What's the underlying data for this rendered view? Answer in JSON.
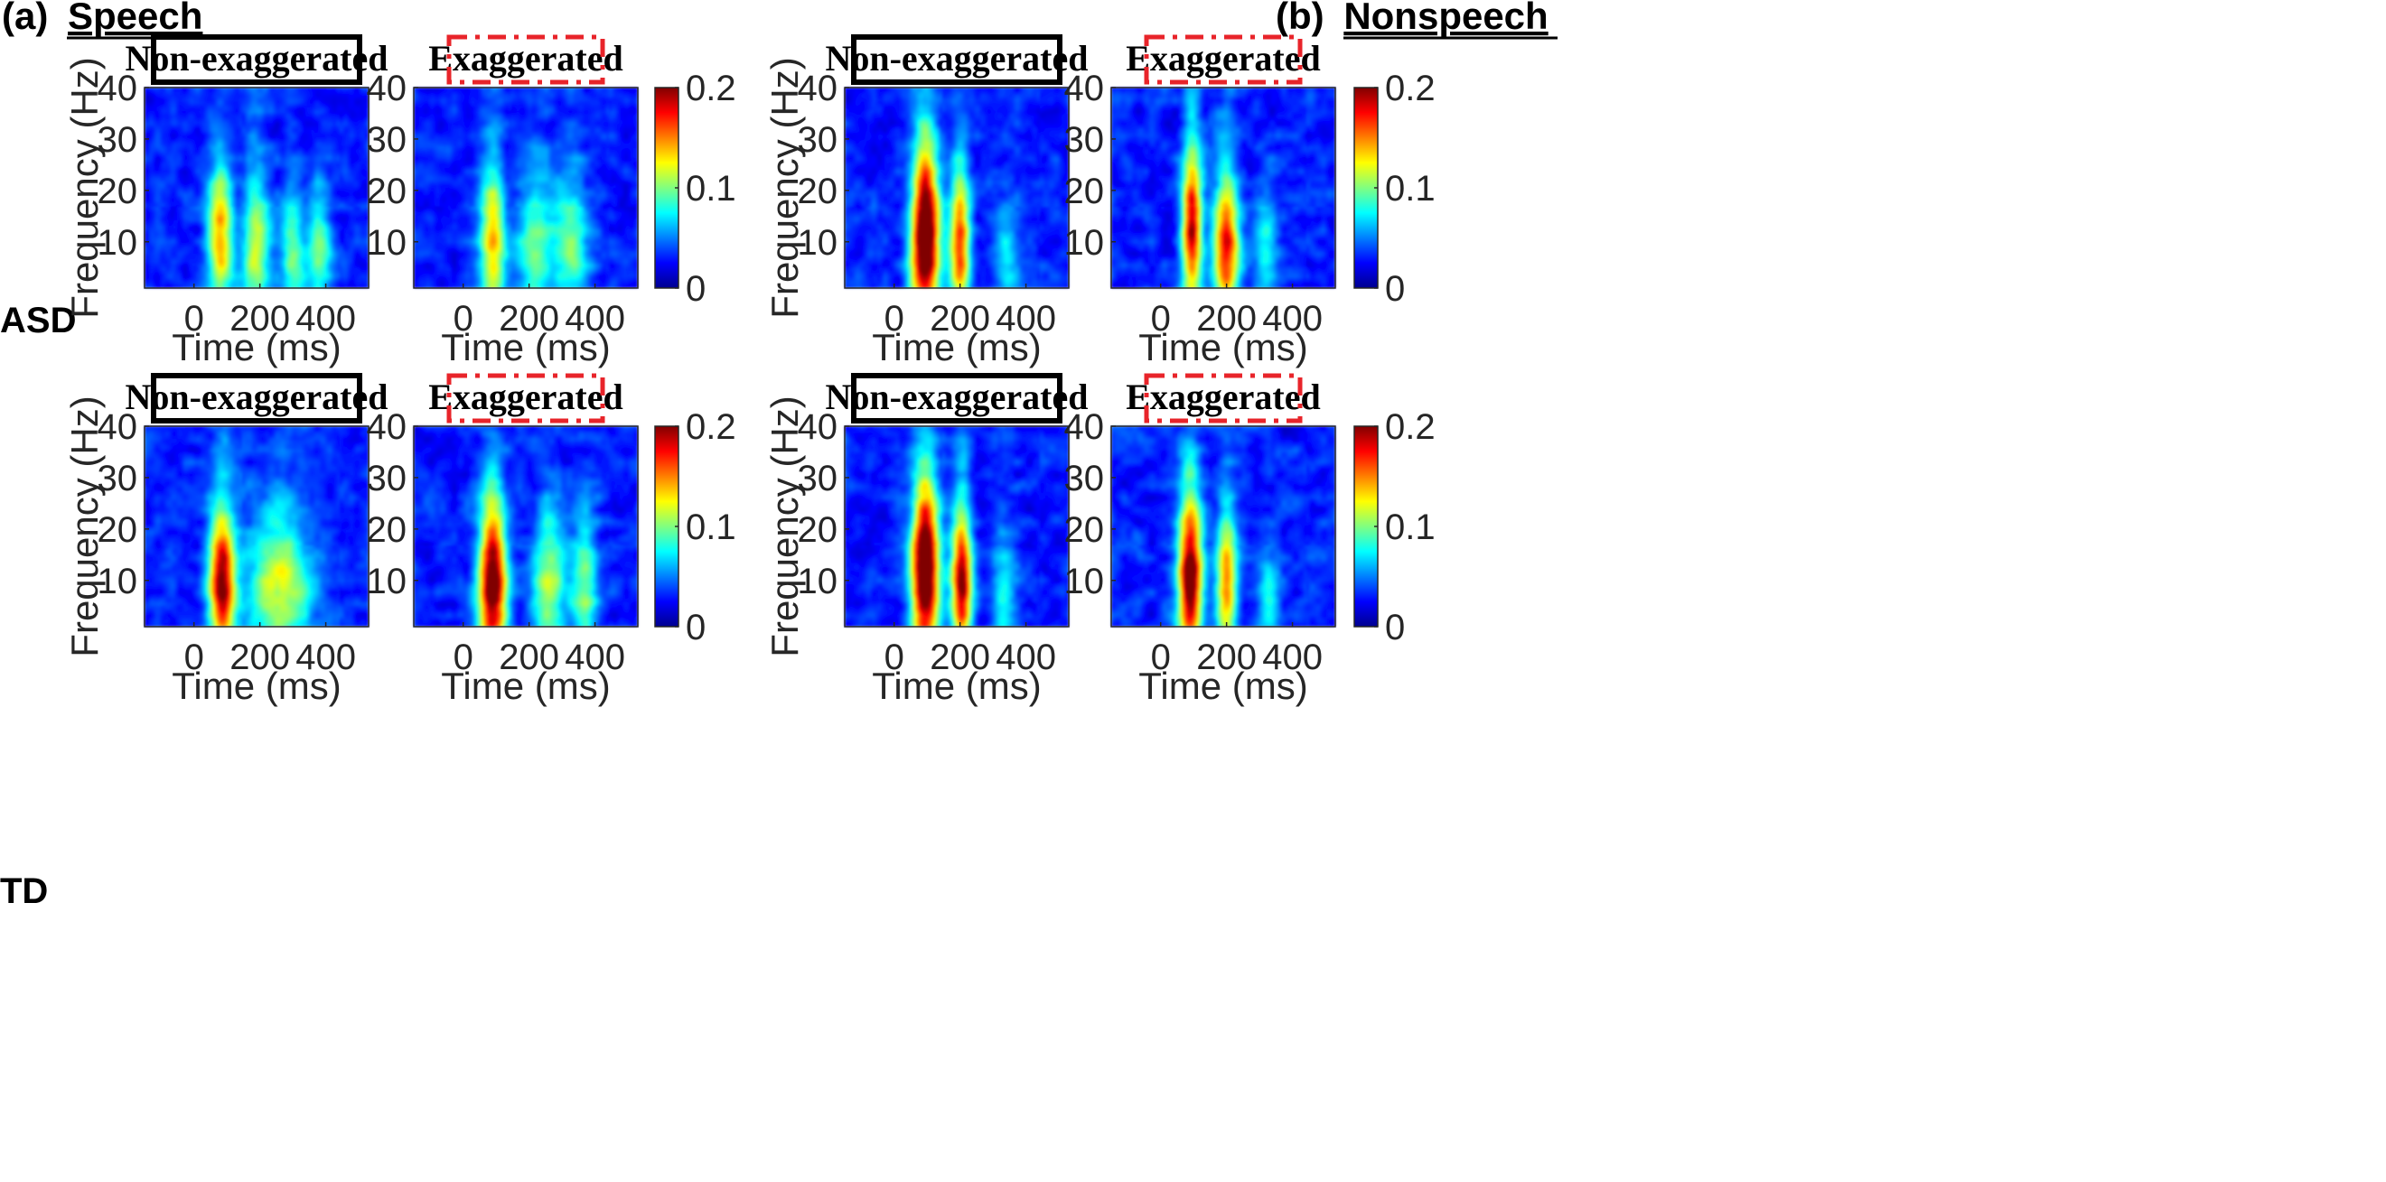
{
  "panels": [
    {
      "letter": "(a)",
      "name": "Speech"
    },
    {
      "letter": "(b)",
      "name": "Nonspeech"
    }
  ],
  "rows": [
    "ASD",
    "TD"
  ],
  "conditions": [
    "Non-exaggerated",
    "Exaggerated"
  ],
  "colors": {
    "non_exaggerated_box": "#000000",
    "exaggerated_box": "#e8242a",
    "colormap": "jet"
  },
  "chart_data": {
    "type": "heatmap",
    "subtype": "time-frequency spectrogram grid (2 panels x 2 groups x 2 conditions)",
    "xlabel": "Time (ms)",
    "ylabel": "Frequency (Hz)",
    "xlim": [
      -150,
      530
    ],
    "ylim": [
      1,
      40
    ],
    "xticks": [
      0,
      200,
      400
    ],
    "yticks": [
      10,
      20,
      30,
      40
    ],
    "colorbar": {
      "min": 0,
      "max": 0.2,
      "ticks": [
        "0",
        "0.1",
        "0.2"
      ]
    },
    "plots": [
      {
        "panel": "Speech",
        "group": "ASD",
        "condition": "Non-exaggerated",
        "blobs": [
          {
            "t": 80,
            "f": 10,
            "width_ms": 28,
            "height_hz": 9,
            "peak": 0.11
          },
          {
            "t": 190,
            "f": 8,
            "width_ms": 30,
            "height_hz": 9,
            "peak": 0.08
          },
          {
            "t": 300,
            "f": 7,
            "width_ms": 25,
            "height_hz": 8,
            "peak": 0.065
          },
          {
            "t": 380,
            "f": 7,
            "width_ms": 28,
            "height_hz": 8,
            "peak": 0.06
          }
        ]
      },
      {
        "panel": "Speech",
        "group": "ASD",
        "condition": "Exaggerated",
        "blobs": [
          {
            "t": 90,
            "f": 9,
            "width_ms": 28,
            "height_hz": 10,
            "peak": 0.1
          },
          {
            "t": 220,
            "f": 8,
            "width_ms": 40,
            "height_hz": 9,
            "peak": 0.065
          },
          {
            "t": 330,
            "f": 8,
            "width_ms": 40,
            "height_hz": 9,
            "peak": 0.06
          }
        ]
      },
      {
        "panel": "Speech",
        "group": "TD",
        "condition": "Non-exaggerated",
        "blobs": [
          {
            "t": 85,
            "f": 9,
            "width_ms": 28,
            "height_hz": 9,
            "peak": 0.16
          },
          {
            "t": 260,
            "f": 8,
            "width_ms": 70,
            "height_hz": 9,
            "peak": 0.085
          }
        ]
      },
      {
        "panel": "Speech",
        "group": "TD",
        "condition": "Exaggerated",
        "blobs": [
          {
            "t": 90,
            "f": 9,
            "width_ms": 30,
            "height_hz": 10,
            "peak": 0.18
          },
          {
            "t": 260,
            "f": 8,
            "width_ms": 35,
            "height_hz": 9,
            "peak": 0.075
          },
          {
            "t": 370,
            "f": 8,
            "width_ms": 30,
            "height_hz": 8,
            "peak": 0.065
          }
        ]
      },
      {
        "panel": "Nonspeech",
        "group": "ASD",
        "condition": "Non-exaggerated",
        "blobs": [
          {
            "t": 95,
            "f": 10,
            "width_ms": 30,
            "height_hz": 11,
            "peak": 0.2
          },
          {
            "t": 200,
            "f": 9,
            "width_ms": 22,
            "height_hz": 9,
            "peak": 0.13
          },
          {
            "t": 340,
            "f": 6,
            "width_ms": 25,
            "height_hz": 6,
            "peak": 0.04
          }
        ]
      },
      {
        "panel": "Nonspeech",
        "group": "ASD",
        "condition": "Exaggerated",
        "blobs": [
          {
            "t": 95,
            "f": 12,
            "width_ms": 22,
            "height_hz": 10,
            "peak": 0.15
          },
          {
            "t": 200,
            "f": 8,
            "width_ms": 28,
            "height_hz": 9,
            "peak": 0.14
          },
          {
            "t": 320,
            "f": 7,
            "width_ms": 25,
            "height_hz": 7,
            "peak": 0.05
          }
        ]
      },
      {
        "panel": "Nonspeech",
        "group": "TD",
        "condition": "Non-exaggerated",
        "blobs": [
          {
            "t": 95,
            "f": 11,
            "width_ms": 30,
            "height_hz": 11,
            "peak": 0.2
          },
          {
            "t": 205,
            "f": 9,
            "width_ms": 22,
            "height_hz": 9,
            "peak": 0.16
          },
          {
            "t": 330,
            "f": 7,
            "width_ms": 25,
            "height_hz": 7,
            "peak": 0.05
          }
        ]
      },
      {
        "panel": "Nonspeech",
        "group": "TD",
        "condition": "Exaggerated",
        "blobs": [
          {
            "t": 90,
            "f": 10,
            "width_ms": 26,
            "height_hz": 10,
            "peak": 0.18
          },
          {
            "t": 200,
            "f": 9,
            "width_ms": 22,
            "height_hz": 9,
            "peak": 0.11
          },
          {
            "t": 330,
            "f": 6,
            "width_ms": 25,
            "height_hz": 6,
            "peak": 0.04
          }
        ]
      }
    ]
  }
}
